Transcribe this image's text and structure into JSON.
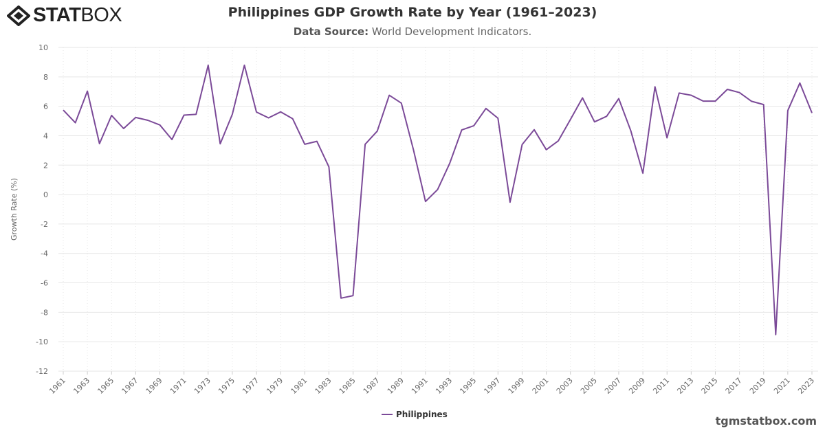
{
  "brand": {
    "logo_text_bold": "STAT",
    "logo_text_light": "BOX"
  },
  "header": {
    "title": "Philippines GDP Growth Rate by Year (1961–2023)",
    "subtitle_label": "Data Source:",
    "subtitle_value": "World Development Indicators."
  },
  "footer": {
    "site": "tgmstatbox.com"
  },
  "colors": {
    "series": "#7b4a98",
    "grid": "#e6e6e6",
    "text": "#666666"
  },
  "chart_data": {
    "type": "line",
    "title": "Philippines GDP Growth Rate by Year (1961–2023)",
    "ylabel": "Growth Rate (%)",
    "xlabel": "",
    "ylim": [
      -12,
      10
    ],
    "yticks": [
      10,
      8,
      6,
      4,
      2,
      0,
      -2,
      -4,
      -6,
      -8,
      -10,
      -12
    ],
    "grid": true,
    "legend": "bottom-center",
    "x": [
      1961,
      1962,
      1963,
      1964,
      1965,
      1966,
      1967,
      1968,
      1969,
      1970,
      1971,
      1972,
      1973,
      1974,
      1975,
      1976,
      1977,
      1978,
      1979,
      1980,
      1981,
      1982,
      1983,
      1984,
      1985,
      1986,
      1987,
      1988,
      1989,
      1990,
      1991,
      1992,
      1993,
      1994,
      1995,
      1996,
      1997,
      1998,
      1999,
      2000,
      2001,
      2002,
      2003,
      2004,
      2005,
      2006,
      2007,
      2008,
      2009,
      2010,
      2011,
      2012,
      2013,
      2014,
      2015,
      2016,
      2017,
      2018,
      2019,
      2020,
      2021,
      2022,
      2023
    ],
    "series": [
      {
        "name": "Philippines",
        "values": [
          5.74,
          4.88,
          7.03,
          3.46,
          5.38,
          4.49,
          5.24,
          5.05,
          4.73,
          3.74,
          5.4,
          5.45,
          8.79,
          3.45,
          5.45,
          8.79,
          5.61,
          5.21,
          5.62,
          5.15,
          3.42,
          3.62,
          1.88,
          -7.04,
          -6.87,
          3.42,
          4.31,
          6.75,
          6.21,
          3.04,
          -0.47,
          0.34,
          2.12,
          4.39,
          4.68,
          5.85,
          5.19,
          -0.52,
          3.4,
          4.41,
          3.05,
          3.65,
          5.1,
          6.57,
          4.94,
          5.32,
          6.52,
          4.34,
          1.45,
          7.33,
          3.86,
          6.9,
          6.75,
          6.35,
          6.35,
          7.15,
          6.93,
          6.34,
          6.12,
          -9.52,
          5.71,
          7.58,
          5.55
        ]
      }
    ]
  }
}
